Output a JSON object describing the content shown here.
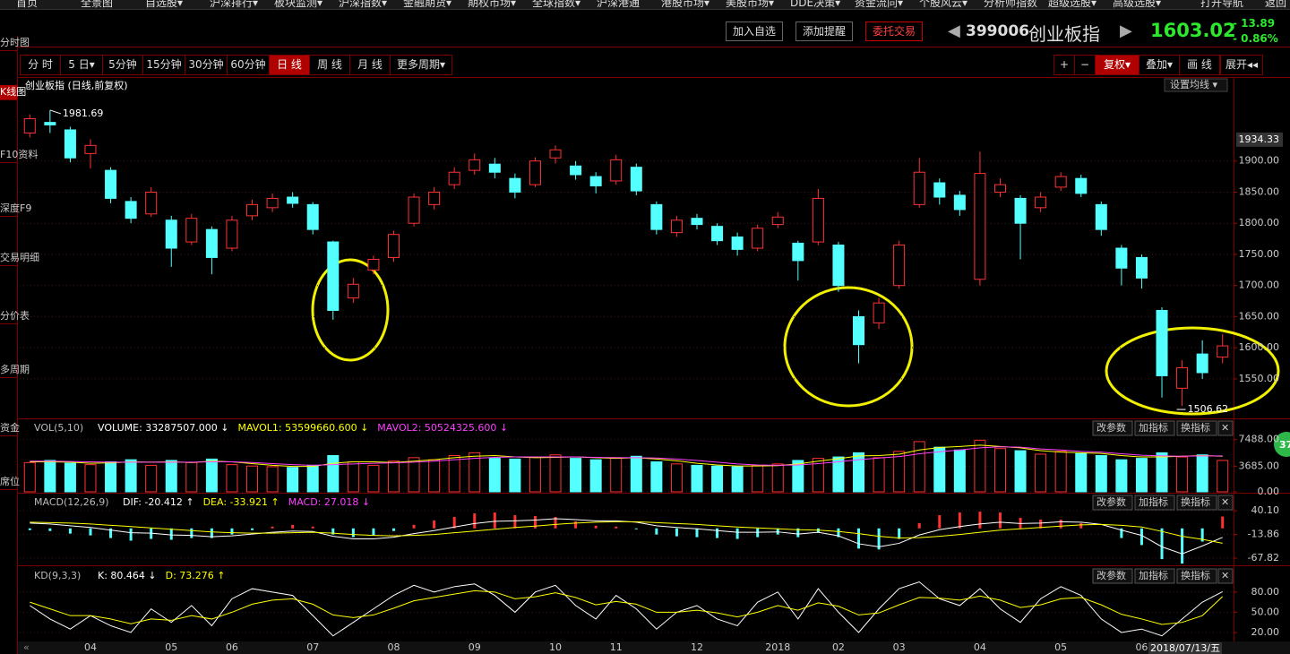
{
  "ui": {
    "nav": [
      "首页",
      "全景图",
      "自选股▾",
      "沪深排行▾",
      "板块监测▾",
      "沪深指数▾",
      "金融期货▾",
      "期权市场▾",
      "全球指数▾",
      "沪深港通",
      "港股市场▾",
      "美股市场▾",
      "DDE决策▾",
      "资金流向▾",
      "个股风云▾",
      "分析师指数",
      "超级选股▾",
      "高级选股▾",
      "打开导航",
      "返回"
    ],
    "sidebar": [
      "分时图",
      "K线图",
      "F10资料",
      "深度F9",
      "交易明细",
      "分价表",
      "多周期",
      "资金",
      "席位"
    ],
    "actions": [
      "加入自选",
      "添加提醒",
      "委托交易"
    ],
    "quote": {
      "code": "399006",
      "name": "创业板指",
      "change": "- 13.89",
      "pct": "- 0.86%"
    },
    "periods": [
      "分 时",
      "5 日▾",
      "5分钟",
      "15分钟",
      "30分钟",
      "60分钟",
      "日 线",
      "周 线",
      "月 线",
      "更多周期▾"
    ],
    "tools": [
      "+",
      "−",
      "复权▾",
      "叠加▾",
      "画 线",
      "展开◂◂"
    ],
    "ma_setting": "设置均线 ▾",
    "panel_buttons": [
      "改参数",
      "加指标",
      "换指标",
      "✕"
    ],
    "cursor_date": "2018/07/13/五",
    "badge": "37"
  },
  "chart_data": [
    {
      "type": "candlestick",
      "title": "创业板指 (日线,前复权)",
      "categories": [
        null,
        null,
        null,
        "04",
        null,
        null,
        null,
        "05",
        null,
        null,
        "06",
        null,
        null,
        null,
        "07",
        null,
        null,
        null,
        "08",
        null,
        null,
        null,
        "09",
        null,
        null,
        null,
        "10",
        null,
        null,
        "11",
        null,
        null,
        null,
        "12",
        null,
        null,
        null,
        "2018",
        null,
        null,
        "02",
        null,
        null,
        "03",
        null,
        null,
        null,
        "04",
        null,
        null,
        null,
        "05",
        null,
        null,
        null,
        "06",
        null,
        null,
        null,
        null
      ],
      "open": [
        1945,
        1962,
        1950,
        1912,
        1885,
        1835,
        1815,
        1805,
        1770,
        1790,
        1760,
        1812,
        1825,
        1842,
        1830,
        1770,
        1680,
        1725,
        1745,
        1800,
        1830,
        1862,
        1885,
        1895,
        1872,
        1862,
        1905,
        1892,
        1875,
        1868,
        1890,
        1830,
        1785,
        1808,
        1795,
        1778,
        1760,
        1798,
        1768,
        1770,
        1765,
        1650,
        1640,
        1700,
        1830,
        1865,
        1845,
        1710,
        1850,
        1840,
        1825,
        1858,
        1872,
        1830,
        1760,
        1745,
        1660,
        1535,
        1590,
        1585
      ],
      "close": [
        1968,
        1958,
        1905,
        1925,
        1840,
        1808,
        1850,
        1760,
        1808,
        1745,
        1805,
        1830,
        1840,
        1832,
        1790,
        1660,
        1702,
        1742,
        1782,
        1842,
        1850,
        1882,
        1902,
        1882,
        1850,
        1900,
        1918,
        1878,
        1860,
        1902,
        1852,
        1790,
        1805,
        1798,
        1772,
        1758,
        1792,
        1810,
        1740,
        1840,
        1700,
        1605,
        1672,
        1765,
        1882,
        1842,
        1822,
        1880,
        1862,
        1800,
        1842,
        1875,
        1848,
        1790,
        1728,
        1712,
        1555,
        1568,
        1560,
        1603.02
      ],
      "high": [
        1975,
        1981.69,
        1955,
        1935,
        1890,
        1842,
        1858,
        1812,
        1815,
        1795,
        1812,
        1838,
        1848,
        1850,
        1834,
        1772,
        1712,
        1748,
        1788,
        1848,
        1858,
        1890,
        1912,
        1905,
        1880,
        1906,
        1925,
        1900,
        1882,
        1910,
        1896,
        1835,
        1812,
        1815,
        1800,
        1785,
        1798,
        1818,
        1772,
        1855,
        1770,
        1660,
        1680,
        1772,
        1905,
        1872,
        1852,
        1915,
        1872,
        1845,
        1850,
        1882,
        1878,
        1835,
        1765,
        1750,
        1665,
        1580,
        1612,
        1622
      ],
      "low": [
        1938,
        1945,
        1898,
        1888,
        1832,
        1800,
        1810,
        1730,
        1765,
        1718,
        1755,
        1805,
        1818,
        1825,
        1782,
        1645,
        1672,
        1718,
        1738,
        1795,
        1822,
        1855,
        1878,
        1872,
        1840,
        1858,
        1896,
        1870,
        1848,
        1862,
        1845,
        1782,
        1778,
        1790,
        1765,
        1748,
        1755,
        1792,
        1708,
        1765,
        1690,
        1575,
        1630,
        1695,
        1825,
        1830,
        1812,
        1700,
        1842,
        1742,
        1818,
        1852,
        1842,
        1780,
        1700,
        1695,
        1520,
        1506.62,
        1550,
        1575
      ],
      "up_color": "#ff3232",
      "down_color": "#54ffff",
      "ylim": [
        1488,
        2032
      ],
      "yticks": [
        {
          "value": 1550,
          "label": "1550.00"
        },
        {
          "value": 1600,
          "label": "1600.00"
        },
        {
          "value": 1650,
          "label": "1650.00"
        },
        {
          "value": 1700,
          "label": "1700.00"
        },
        {
          "value": 1750,
          "label": "1750.00"
        },
        {
          "value": 1800,
          "label": "1800.00"
        },
        {
          "value": 1850,
          "label": "1850.00"
        },
        {
          "value": 1900,
          "label": "1900.00"
        }
      ],
      "axis_marker": 1934.33,
      "grid": true
    },
    {
      "type": "volume",
      "title": "VOL(5,10)",
      "readings": [
        {
          "text": "VOLUME: 33287507.000 ↓",
          "color": "#ffffff"
        },
        {
          "text": "MAVOL1: 53599660.600 ↓",
          "color": "#ffff00"
        },
        {
          "text": "MAVOL2: 50524325.600 ↓",
          "color": "#ff40ff"
        }
      ],
      "values": [
        4200,
        4500,
        4100,
        3900,
        4300,
        4600,
        3800,
        4500,
        4200,
        4700,
        3900,
        3700,
        3600,
        3500,
        3800,
        5200,
        4300,
        3800,
        4400,
        4900,
        4600,
        5200,
        5600,
        4800,
        4700,
        5000,
        5300,
        4800,
        4600,
        4900,
        5100,
        4300,
        4000,
        3800,
        3700,
        3600,
        3800,
        4000,
        4500,
        4800,
        5000,
        5600,
        4900,
        5800,
        7200,
        6400,
        6000,
        7400,
        6200,
        5900,
        5400,
        5800,
        5500,
        5200,
        4600,
        4800,
        5600,
        5000,
        5300,
        4500
      ],
      "series": [
        {
          "color": "#ffff00",
          "values": [
            4300,
            4300,
            4250,
            4100,
            4150,
            4300,
            4250,
            4300,
            4200,
            4400,
            4300,
            4050,
            3800,
            3650,
            3650,
            4100,
            4300,
            4300,
            4200,
            4400,
            4600,
            4900,
            5100,
            5200,
            5000,
            4900,
            4950,
            5000,
            4900,
            4800,
            4900,
            4700,
            4450,
            4100,
            3850,
            3700,
            3700,
            3750,
            4000,
            4400,
            4750,
            5150,
            5200,
            5400,
            6000,
            6350,
            6500,
            6700,
            6500,
            6300,
            5900,
            5700,
            5600,
            5500,
            5200,
            5000,
            5000,
            5100,
            5200,
            5100
          ]
        },
        {
          "color": "#ff40ff",
          "values": [
            4400,
            4400,
            4350,
            4300,
            4250,
            4250,
            4250,
            4250,
            4250,
            4300,
            4300,
            4200,
            4050,
            3900,
            3800,
            3900,
            4000,
            4100,
            4150,
            4250,
            4400,
            4600,
            4800,
            4950,
            5000,
            5000,
            5000,
            5000,
            4950,
            4900,
            4900,
            4850,
            4700,
            4500,
            4250,
            4000,
            3850,
            3800,
            3850,
            4050,
            4300,
            4600,
            4850,
            5050,
            5450,
            5750,
            6000,
            6300,
            6450,
            6400,
            6150,
            6000,
            5800,
            5700,
            5450,
            5250,
            5150,
            5100,
            5150,
            5150
          ]
        }
      ],
      "ylim": [
        0,
        10400
      ],
      "yticks": [
        {
          "value": 0,
          "label": "0.00"
        },
        {
          "value": 3685,
          "label": "3685.00"
        },
        {
          "value": 7488,
          "label": "7488.00"
        }
      ]
    },
    {
      "type": "macd",
      "title": "MACD(12,26,9)",
      "readings": [
        {
          "text": "DIF: -20.412 ↑",
          "color": "#ffffff"
        },
        {
          "text": "DEA: -33.921 ↑",
          "color": "#ffff00"
        },
        {
          "text": "MACD: 27.018 ↓",
          "color": "#ff40ff"
        }
      ],
      "values": [
        -4,
        -6,
        -12,
        -16,
        -22,
        -28,
        -24,
        -26,
        -22,
        -22,
        -14,
        -4,
        4,
        8,
        4,
        -14,
        -20,
        -16,
        -6,
        8,
        18,
        26,
        34,
        36,
        30,
        28,
        26,
        16,
        6,
        4,
        -2,
        -14,
        -18,
        -20,
        -22,
        -24,
        -20,
        -14,
        -20,
        -10,
        -20,
        -46,
        -48,
        -24,
        12,
        30,
        36,
        38,
        36,
        24,
        20,
        20,
        12,
        0,
        -22,
        -38,
        -70,
        -80,
        -30,
        27.018
      ],
      "series": [
        {
          "color": "#ffffff",
          "values": [
            12,
            10,
            6,
            2,
            -4,
            -10,
            -11,
            -15,
            -16,
            -19,
            -17,
            -13,
            -9,
            -6,
            -7,
            -18,
            -24,
            -24,
            -20,
            -12,
            -5,
            3,
            11,
            16,
            17,
            19,
            22,
            20,
            17,
            17,
            14,
            6,
            2,
            -1,
            -5,
            -9,
            -9,
            -8,
            -13,
            -9,
            -17,
            -35,
            -42,
            -34,
            -15,
            -3,
            4,
            10,
            14,
            11,
            12,
            15,
            14,
            9,
            -4,
            -16,
            -42,
            -58,
            -40,
            -20.412
          ]
        },
        {
          "color": "#ffff00",
          "values": [
            14,
            13,
            12,
            10,
            7,
            4,
            1,
            -2,
            -5,
            -8,
            -10,
            -11,
            -11,
            -10,
            -9,
            -11,
            -14,
            -16,
            -17,
            -16,
            -14,
            -10,
            -6,
            -2,
            2,
            5,
            9,
            12,
            14,
            15,
            15,
            13,
            11,
            9,
            6,
            3,
            1,
            -1,
            -3,
            -4,
            -7,
            -12,
            -18,
            -22,
            -21,
            -18,
            -14,
            -9,
            -4,
            -1,
            2,
            5,
            8,
            9,
            7,
            3,
            -7,
            -18,
            -25,
            -33.921
          ]
        }
      ],
      "up_color": "#ff3232",
      "down_color": "#54ffff",
      "ylim": [
        -82,
        79
      ],
      "yticks": [
        {
          "value": -67.82,
          "label": "-67.82"
        },
        {
          "value": -13.86,
          "label": "-13.86"
        },
        {
          "value": 40.1,
          "label": "40.10"
        }
      ]
    },
    {
      "type": "line",
      "title": "KD(9,3,3)",
      "readings": [
        {
          "text": "K: 80.464 ↓",
          "color": "#ffffff"
        },
        {
          "text": "D: 73.276 ↑",
          "color": "#ffff00"
        }
      ],
      "series": [
        {
          "color": "#ffffff",
          "values": [
            60,
            40,
            25,
            45,
            30,
            20,
            55,
            35,
            60,
            30,
            70,
            85,
            80,
            75,
            45,
            15,
            35,
            55,
            75,
            90,
            80,
            88,
            92,
            75,
            50,
            80,
            90,
            60,
            40,
            75,
            55,
            25,
            50,
            60,
            40,
            30,
            65,
            80,
            40,
            85,
            50,
            20,
            55,
            85,
            95,
            70,
            60,
            85,
            55,
            35,
            70,
            88,
            75,
            40,
            20,
            25,
            15,
            40,
            65,
            80.464
          ]
        },
        {
          "color": "#ffff00",
          "values": [
            65,
            55,
            45,
            45,
            40,
            33,
            40,
            38,
            45,
            40,
            50,
            62,
            68,
            70,
            62,
            46,
            42,
            46,
            56,
            67,
            72,
            77,
            82,
            80,
            70,
            73,
            79,
            72,
            61,
            66,
            62,
            50,
            50,
            53,
            49,
            43,
            50,
            60,
            53,
            64,
            59,
            46,
            49,
            61,
            72,
            71,
            68,
            74,
            68,
            57,
            61,
            70,
            72,
            61,
            47,
            40,
            32,
            35,
            45,
            73.276
          ]
        }
      ],
      "ylim": [
        8,
        117
      ],
      "yticks": [
        {
          "value": 20,
          "label": "20.00"
        },
        {
          "value": 50,
          "label": "50.00"
        },
        {
          "value": 80,
          "label": "80.00"
        }
      ]
    }
  ]
}
